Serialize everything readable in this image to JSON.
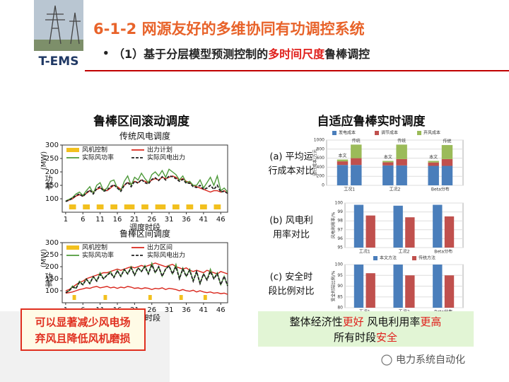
{
  "header": {
    "logo_label": "T-EMS",
    "title": "6-1-2 网源友好的多维协同有功调控系统",
    "bullet_mark": "•",
    "bullet": [
      {
        "text": "（1）基于分层模型预测控制的"
      },
      {
        "text": "多时间尺度",
        "em": true
      },
      {
        "text": "鲁棒调控"
      }
    ]
  },
  "left": {
    "heading": "鲁棒区间滚动调度",
    "charts": [
      {
        "type": "line",
        "title": "传统风电调度",
        "ylabel_unit": "(MW)",
        "ylabel": "功率",
        "xlabel": "调度时段",
        "xlim": [
          0,
          48
        ],
        "ylim": [
          50,
          300
        ],
        "yticks": [
          100,
          150,
          200,
          250,
          300
        ],
        "xticks": [
          1,
          6,
          11,
          16,
          21,
          26,
          31,
          36,
          41,
          46
        ],
        "x": [
          1,
          2,
          3,
          4,
          5,
          6,
          7,
          8,
          9,
          10,
          11,
          12,
          13,
          14,
          15,
          16,
          17,
          18,
          19,
          20,
          21,
          22,
          23,
          24,
          25,
          26,
          27,
          28,
          29,
          30,
          31,
          32,
          33,
          34,
          35,
          36,
          37,
          38,
          39,
          40,
          41,
          42,
          43,
          44,
          45,
          46,
          47,
          48
        ],
        "control": {
          "name": "风机控制",
          "color": "#f2c01e",
          "intervals": [
            [
              2,
              4
            ],
            [
              6,
              8
            ],
            [
              10,
              12
            ],
            [
              14,
              16
            ],
            [
              18,
              21
            ],
            [
              23,
              25
            ],
            [
              27,
              30
            ],
            [
              32,
              34
            ],
            [
              36,
              38
            ],
            [
              40,
              42
            ],
            [
              44,
              46
            ]
          ]
        },
        "series": [
          {
            "name": "出力计划",
            "color": "#d9261c",
            "values": [
              90,
              95,
              100,
              110,
              115,
              110,
              120,
              130,
              125,
              135,
              140,
              135,
              130,
              140,
              150,
              145,
              135,
              150,
              160,
              155,
              165,
              160,
              170,
              165,
              160,
              170,
              175,
              170,
              180,
              175,
              180,
              185,
              180,
              170,
              175,
              165,
              160,
              150,
              145,
              140,
              135,
              130,
              125,
              130,
              130,
              125,
              130,
              120
            ]
          },
          {
            "name": "实际风功率",
            "color": "#4e9a3a",
            "values": [
              92,
              98,
              105,
              118,
              125,
              112,
              130,
              145,
              120,
              150,
              160,
              130,
              140,
              165,
              170,
              140,
              130,
              165,
              185,
              150,
              180,
              170,
              195,
              175,
              160,
              190,
              200,
              185,
              205,
              180,
              210,
              200,
              190,
              170,
              185,
              160,
              165,
              150,
              150,
              170,
              140,
              160,
              180,
              150,
              185,
              130,
              140,
              125
            ]
          },
          {
            "name": "实际风电出力",
            "color": "#222222",
            "dash": true,
            "values": [
              90,
              95,
              102,
              112,
              118,
              108,
              122,
              132,
              118,
              138,
              145,
              128,
              132,
              145,
              152,
              140,
              128,
              150,
              162,
              145,
              165,
              158,
              172,
              160,
              155,
              172,
              178,
              168,
              182,
              170,
              185,
              182,
              175,
              165,
              172,
              158,
              158,
              145,
              142,
              150,
              135,
              140,
              150,
              135,
              150,
              125,
              128,
              120
            ]
          }
        ]
      },
      {
        "type": "line",
        "title": "鲁棒区间调度",
        "ylabel_unit": "(MW)",
        "ylabel": "功率",
        "xlabel": "调度时段",
        "xlim": [
          0,
          48
        ],
        "ylim": [
          50,
          300
        ],
        "yticks": [
          100,
          150,
          200,
          250,
          300
        ],
        "xticks": [
          1,
          6,
          11,
          16,
          21,
          26,
          31,
          36,
          41,
          46
        ],
        "x": [
          1,
          2,
          3,
          4,
          5,
          6,
          7,
          8,
          9,
          10,
          11,
          12,
          13,
          14,
          15,
          16,
          17,
          18,
          19,
          20,
          21,
          22,
          23,
          24,
          25,
          26,
          27,
          28,
          29,
          30,
          31,
          32,
          33,
          34,
          35,
          36,
          37,
          38,
          39,
          40,
          41,
          42,
          43,
          44,
          45,
          46,
          47,
          48
        ],
        "control": {
          "name": "风机控制",
          "color": "#f2c01e",
          "intervals": [
            [
              3,
              4
            ],
            [
              12,
              13
            ],
            [
              25,
              26
            ],
            [
              34,
              35
            ],
            [
              41,
              42
            ]
          ]
        },
        "series": [
          {
            "name": "出力区间",
            "color": "#d9261c",
            "values": [
              100,
              105,
              115,
              125,
              135,
              140,
              150,
              155,
              160,
              165,
              170,
              175,
              175,
              180,
              185,
              190,
              185,
              190,
              195,
              200,
              195,
              200,
              205,
              200,
              205,
              210,
              215,
              210,
              205,
              200,
              205,
              210,
              200,
              195,
              190,
              195,
              185,
              180,
              185,
              180,
              175,
              185,
              180,
              175,
              170,
              180,
              175,
              170
            ],
            "lower": [
              90,
              92,
              95,
              100,
              105,
              108,
              112,
              110,
              115,
              118,
              112,
              115,
              118,
              112,
              115,
              110,
              115,
              112,
              118,
              115,
              110,
              112,
              108,
              112,
              110,
              105,
              110,
              108,
              112,
              105,
              110,
              108,
              105,
              100,
              105,
              100,
              98,
              102,
              95,
              100,
              95,
              92,
              95,
              90,
              92,
              88,
              90,
              85
            ]
          },
          {
            "name": "实际风功率",
            "color": "#4e9a3a",
            "values": [
              92,
              100,
              120,
              110,
              140,
              125,
              150,
              130,
              160,
              140,
              175,
              150,
              165,
              180,
              155,
              185,
              160,
              190,
              170,
              200,
              165,
              195,
              180,
              205,
              170,
              215,
              175,
              200,
              160,
              190,
              205,
              170,
              210,
              150,
              195,
              160,
              190,
              140,
              180,
              130,
              170,
              145,
              190,
              150,
              175,
              125,
              160,
              120
            ]
          },
          {
            "name": "实际风电出力",
            "color": "#222222",
            "dash": true,
            "values": [
              92,
              100,
              115,
              110,
              135,
              125,
              148,
              130,
              158,
              140,
              168,
              150,
              165,
              175,
              155,
              183,
              160,
              188,
              170,
              195,
              165,
              195,
              180,
              200,
              170,
              208,
              175,
              200,
              160,
              190,
              203,
              170,
              200,
              150,
              190,
              160,
              185,
              140,
              180,
              130,
              170,
              145,
              180,
              150,
              170,
              125,
              160,
              120
            ]
          }
        ]
      }
    ]
  },
  "callout": {
    "lines": [
      "可以显著减少风电场",
      "弃风且降低风机磨损"
    ]
  },
  "right": {
    "heading": "自适应鲁棒实时调度",
    "charts": [
      {
        "type": "stacked_bar",
        "label": [
          "(a) 平均运",
          "行成本对比"
        ],
        "ylabel": "运行成本/万元",
        "categories": [
          "工况1",
          "工况2",
          "Beta分布"
        ],
        "groups": [
          "本文",
          "传统"
        ],
        "ylim": [
          0,
          1000
        ],
        "yticks": [
          0,
          200,
          400,
          600,
          800,
          1000
        ],
        "series": [
          {
            "name": "发电成本",
            "color": "#4a7ebb",
            "values": [
              [
                450,
                450
              ],
              [
                440,
                440
              ],
              [
                430,
                430
              ]
            ]
          },
          {
            "name": "调节成本",
            "color": "#c0504d",
            "values": [
              [
                80,
                150
              ],
              [
                70,
                140
              ],
              [
                75,
                150
              ]
            ]
          },
          {
            "name": "弃风成本",
            "color": "#9bbb59",
            "values": [
              [
                40,
                300
              ],
              [
                30,
                320
              ],
              [
                35,
                310
              ]
            ]
          }
        ]
      },
      {
        "type": "bar",
        "label": [
          "(b) 风电利",
          "用率对比"
        ],
        "ylabel": "风电利用率/%",
        "categories": [
          "工况1",
          "工况2",
          "Beta分布"
        ],
        "ylim": [
          95,
          100
        ],
        "yticks": [
          95,
          96,
          97,
          98,
          99,
          100
        ],
        "series": [
          {
            "name": "本文方法",
            "color": "#4a7ebb",
            "values": [
              99.8,
              99.7,
              99.8
            ]
          },
          {
            "name": "传统方法",
            "color": "#c0504d",
            "values": [
              98.6,
              98.4,
              98.5
            ]
          }
        ]
      },
      {
        "type": "bar",
        "label": [
          "(c) 安全时",
          "段比例对比"
        ],
        "ylabel": "安全时段比例/%",
        "categories": [
          "工况1",
          "工况2",
          "Beta分布"
        ],
        "ylim": [
          80,
          100
        ],
        "yticks": [
          80,
          85,
          90,
          95,
          100
        ],
        "series": [
          {
            "name": "本文方法",
            "color": "#4a7ebb",
            "values": [
              100,
              100,
              100
            ]
          },
          {
            "name": "传统方法",
            "color": "#c0504d",
            "values": [
              96,
              95,
              95
            ]
          }
        ]
      }
    ]
  },
  "summary": {
    "lines": [
      [
        {
          "text": "整体经济性"
        },
        {
          "text": "更好",
          "em": true
        },
        {
          "text": " 风电利用率"
        },
        {
          "text": "更高",
          "em": true
        }
      ],
      [
        {
          "text": "所有时段"
        },
        {
          "text": "安全",
          "em": true
        }
      ]
    ]
  },
  "watermark": "电力系统自动化"
}
